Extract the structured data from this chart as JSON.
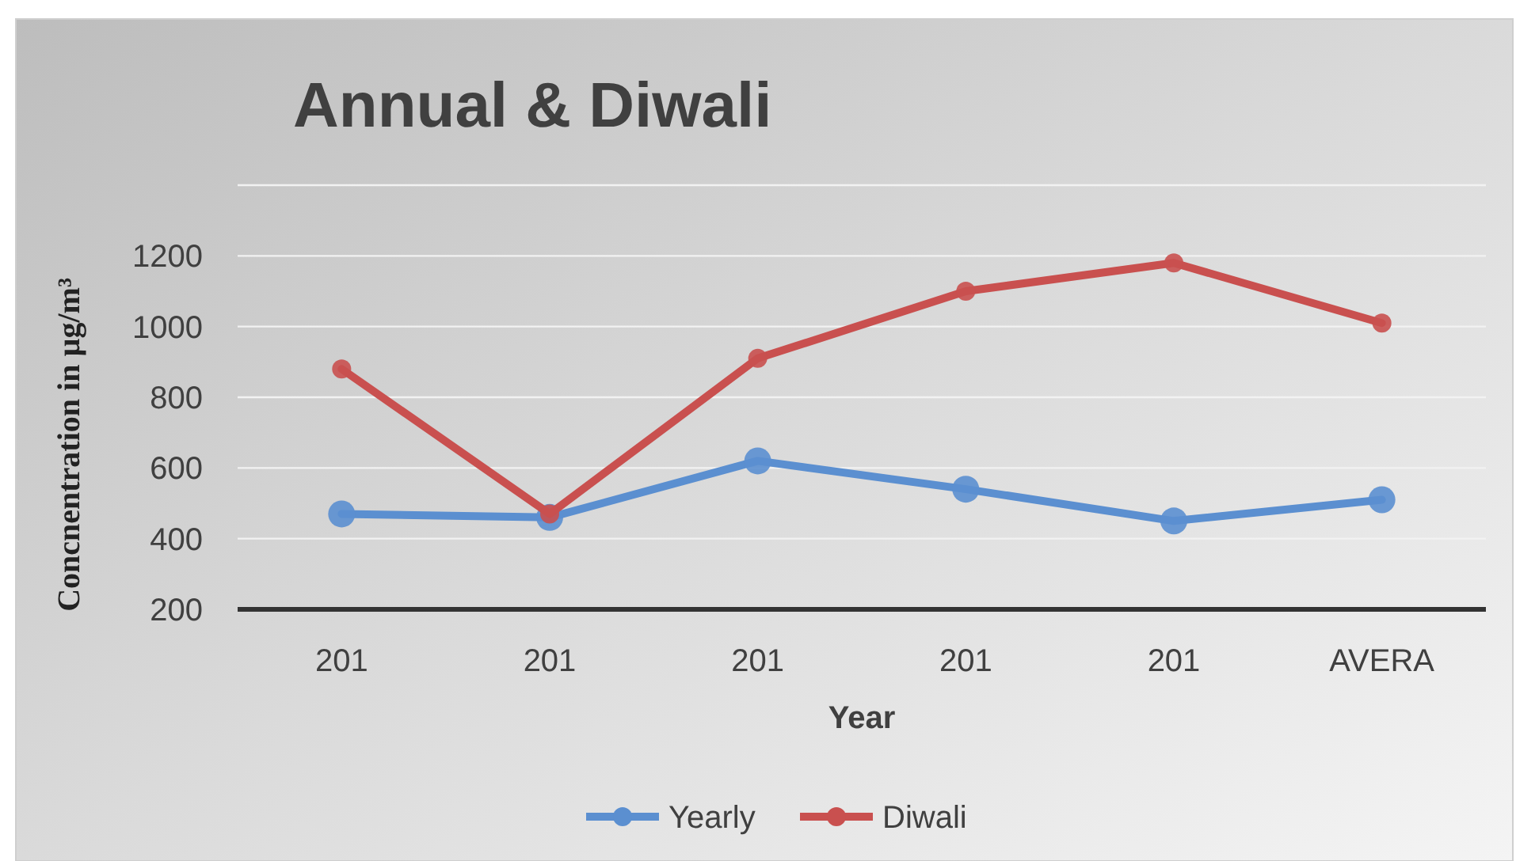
{
  "chart_data": {
    "type": "line",
    "title": "Annual & Diwali",
    "xlabel": "Year",
    "ylabel": "Concnentration in µg/m³",
    "categories": [
      "201",
      "201",
      "201",
      "201",
      "201",
      "AVERA"
    ],
    "series": [
      {
        "name": "Yearly",
        "color": "#5b8fd0",
        "values": [
          470,
          460,
          620,
          540,
          450,
          510
        ]
      },
      {
        "name": "Diwali",
        "color": "#c9504f",
        "values": [
          880,
          470,
          910,
          1100,
          1180,
          1010
        ]
      }
    ],
    "ylim": [
      200,
      1400
    ],
    "yticks": [
      200,
      400,
      600,
      800,
      1000,
      1200,
      {
        "value": 1400,
        "label": null
      }
    ],
    "grid": "y",
    "legend": "bottom",
    "marker": "circle",
    "line_style": "solid"
  }
}
